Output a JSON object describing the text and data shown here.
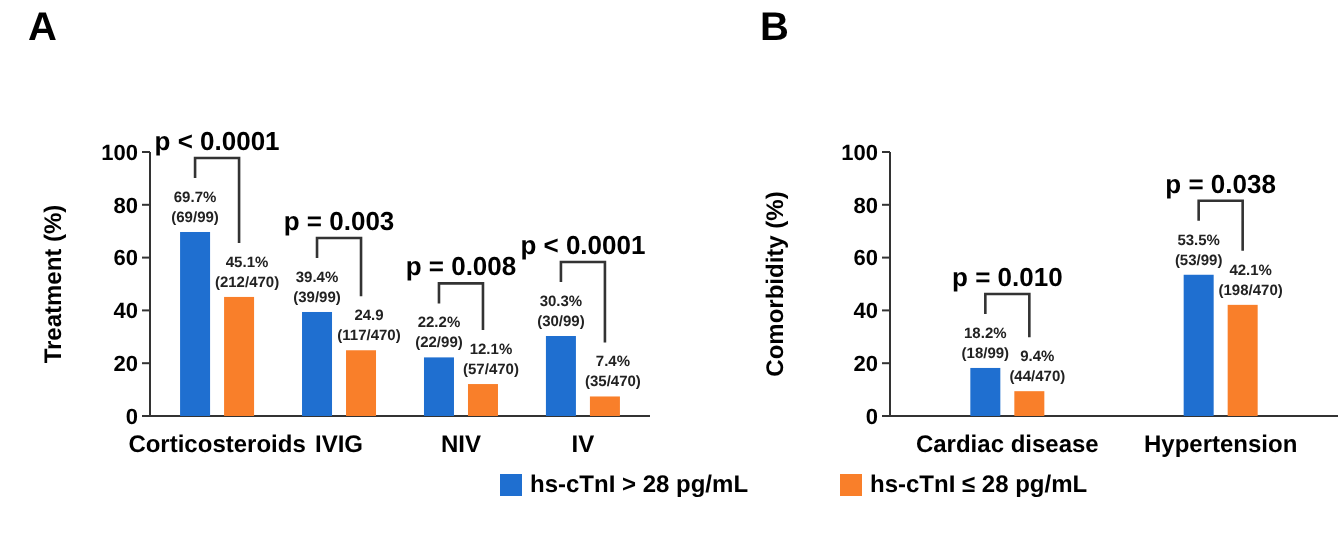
{
  "chart_data": [
    {
      "type": "bar",
      "title": "A",
      "ylabel": "Treatment (%)",
      "categories": [
        "Corticosteroids",
        "IVIG",
        "NIV",
        "IV"
      ],
      "ylim": [
        0,
        100
      ],
      "yticks": [
        0,
        20,
        40,
        60,
        80,
        100
      ],
      "legend": "bottom",
      "series": [
        {
          "name": "hs-cTnI > 28 pg/mL",
          "color": "#1f6fd0",
          "values": [
            69.7,
            39.4,
            22.2,
            30.3
          ],
          "value_labels": [
            "69.7%\n(69/99)",
            "39.4%\n(39/99)",
            "22.2%\n(22/99)",
            "30.3%\n(30/99)"
          ]
        },
        {
          "name": "hs-cTnI ≤ 28 pg/mL",
          "color": "#f97f2a",
          "values": [
            45.1,
            24.9,
            12.1,
            7.4
          ],
          "value_labels": [
            "45.1%\n(212/470)",
            "24.9\n(117/470)",
            "12.1%\n(57/470)",
            "7.4%\n(35/470)"
          ]
        }
      ],
      "annotations": [
        "p < 0.0001",
        "p = 0.003",
        "p = 0.008",
        "p < 0.0001"
      ]
    },
    {
      "type": "bar",
      "title": "B",
      "ylabel": "Comorbidity (%)",
      "categories": [
        "Cardiac disease",
        "Hypertension"
      ],
      "ylim": [
        0,
        100
      ],
      "yticks": [
        0,
        20,
        40,
        60,
        80,
        100
      ],
      "series": [
        {
          "color": "#1f6fd0",
          "values": [
            18.2,
            53.5
          ],
          "value_labels": [
            "18.2%\n(18/99)",
            "53.5%\n(53/99)"
          ]
        },
        {
          "color": "#f97f2a",
          "values": [
            9.4,
            42.1
          ],
          "value_labels": [
            "9.4%\n(44/470)",
            "42.1%\n(198/470)"
          ]
        }
      ],
      "annotations": [
        "p = 0.010",
        "p = 0.038"
      ]
    }
  ]
}
